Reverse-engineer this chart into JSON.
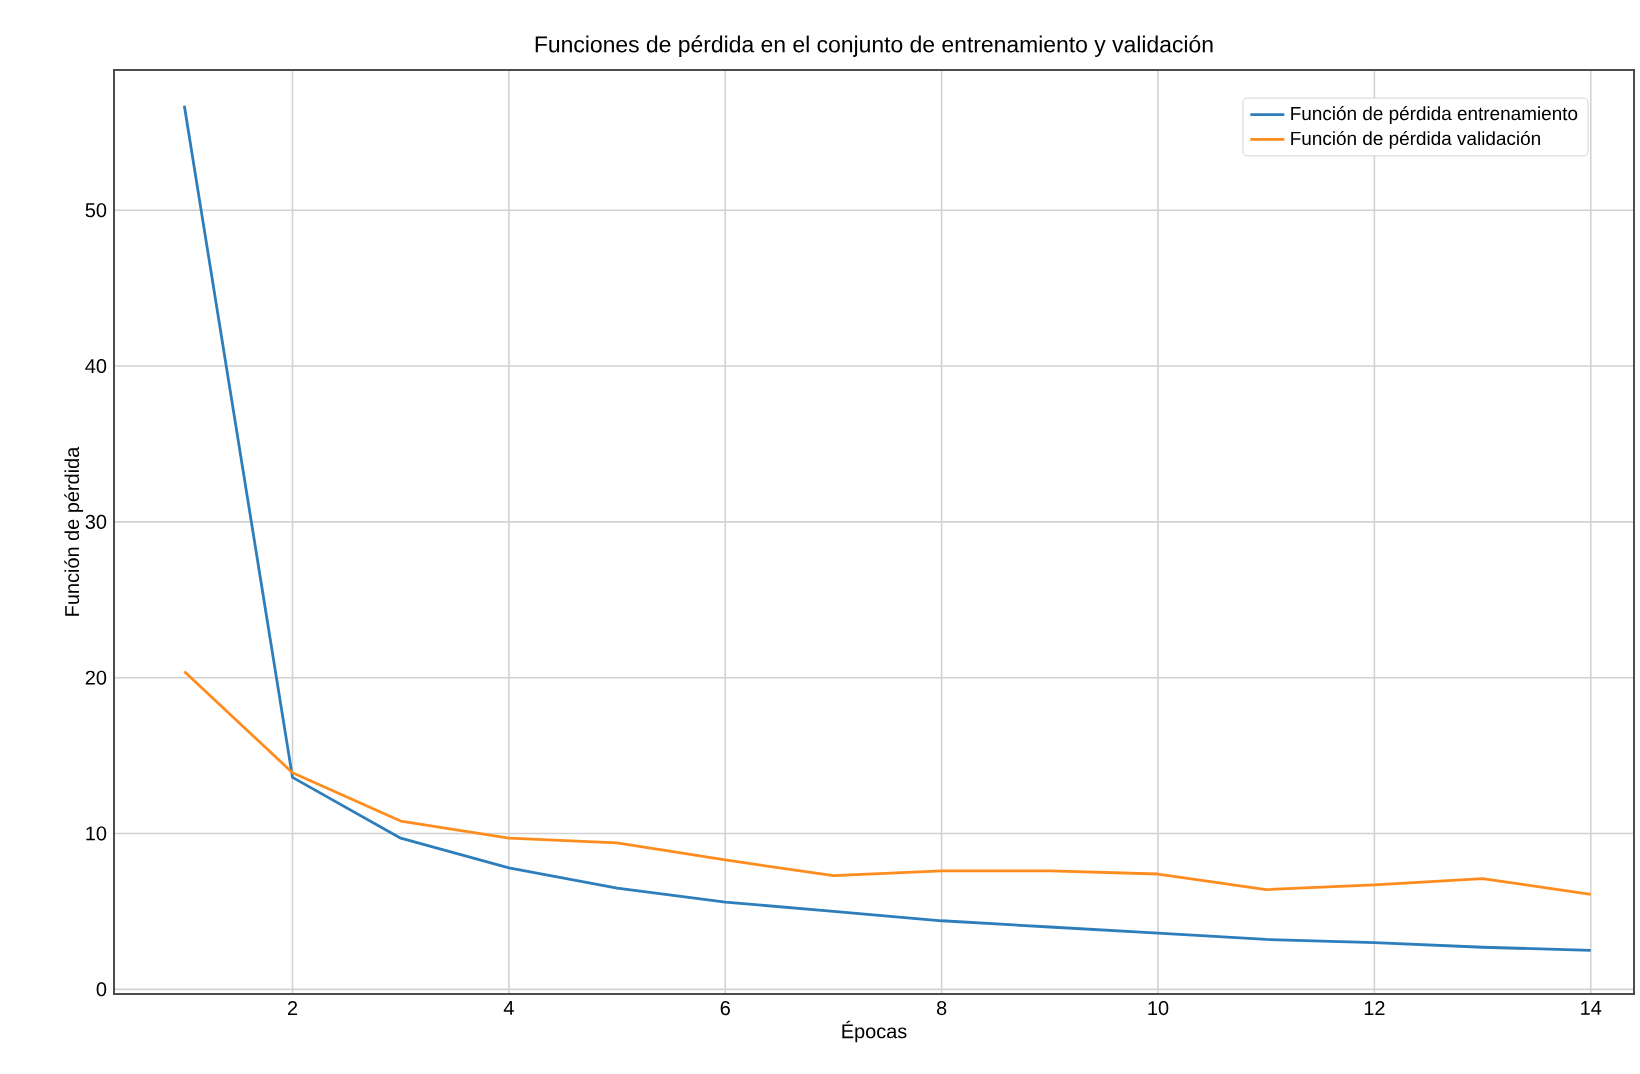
{
  "chart_data": {
    "type": "line",
    "title": "Funciones de pérdida en el conjunto de entrenamiento y validación",
    "xlabel": "Épocas",
    "ylabel": "Función de pérdida",
    "x": [
      1,
      2,
      3,
      4,
      5,
      6,
      7,
      8,
      9,
      10,
      11,
      12,
      13,
      14
    ],
    "series": [
      {
        "name": "Función de pérdida entrenamiento",
        "color": "#2e7ebc",
        "values": [
          56.7,
          13.6,
          9.7,
          7.8,
          6.5,
          5.6,
          5.0,
          4.4,
          4.0,
          3.6,
          3.2,
          3.0,
          2.7,
          2.5
        ]
      },
      {
        "name": "Función de pérdida validación",
        "color": "#ff8c1f",
        "values": [
          20.4,
          13.9,
          10.8,
          9.7,
          9.4,
          8.3,
          7.3,
          7.6,
          7.6,
          7.4,
          6.4,
          6.7,
          7.1,
          6.1
        ]
      }
    ],
    "xlim": [
      0.35,
      14.4
    ],
    "ylim": [
      -0.3,
      59
    ],
    "xticks": [
      2,
      4,
      6,
      8,
      10,
      12,
      14
    ],
    "yticks": [
      0,
      10,
      20,
      30,
      40,
      50
    ],
    "grid": true,
    "legend": "top right",
    "marker": "none",
    "line_style": "solid"
  }
}
